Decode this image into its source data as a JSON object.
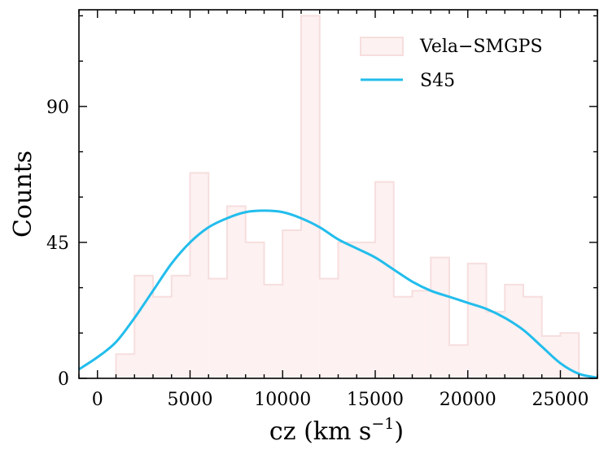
{
  "chart_data": {
    "type": "bar",
    "title": "",
    "xlabel": "cz (km s",
    "xlabel_sup": "−1",
    "xlabel_close": ")",
    "ylabel": "Counts",
    "xlim": [
      -1000,
      27000
    ],
    "ylim": [
      0,
      122
    ],
    "xticks": [
      0,
      5000,
      10000,
      15000,
      20000,
      25000
    ],
    "xtick_labels": [
      "0",
      "5000",
      "10000",
      "15000",
      "20000",
      "25000"
    ],
    "yticks": [
      0,
      45,
      90
    ],
    "ytick_labels": [
      "0",
      "45",
      "90"
    ],
    "x_minor_step": 1000,
    "y_minor_step": 15,
    "histogram": {
      "name": "Vela−SMGPS",
      "bin_start": 1000,
      "bin_width": 1000,
      "values": [
        8,
        34,
        27,
        34,
        68,
        33,
        57,
        45,
        31,
        49,
        120,
        33,
        45,
        45,
        65,
        27,
        29,
        40,
        11,
        38,
        22,
        31,
        27,
        14,
        15
      ],
      "fill": "#fdf1f1",
      "stroke": "#f7dede"
    },
    "kde": {
      "name": "S45",
      "x": [
        -1000,
        0,
        1000,
        2000,
        3000,
        4000,
        5000,
        6000,
        7000,
        8000,
        9000,
        10000,
        11000,
        12000,
        13000,
        14000,
        15000,
        16000,
        17000,
        18000,
        19000,
        20000,
        21000,
        22000,
        23000,
        24000,
        25000,
        26000,
        27000
      ],
      "y": [
        3,
        7,
        12,
        20,
        29,
        38,
        45,
        50,
        53,
        55,
        55.5,
        55,
        53,
        50,
        46,
        43,
        40,
        36,
        32,
        29,
        27,
        25,
        23,
        20,
        16,
        10.5,
        5,
        1.5,
        0.2
      ],
      "color": "#22bdec"
    },
    "legend_position": "top-right"
  }
}
